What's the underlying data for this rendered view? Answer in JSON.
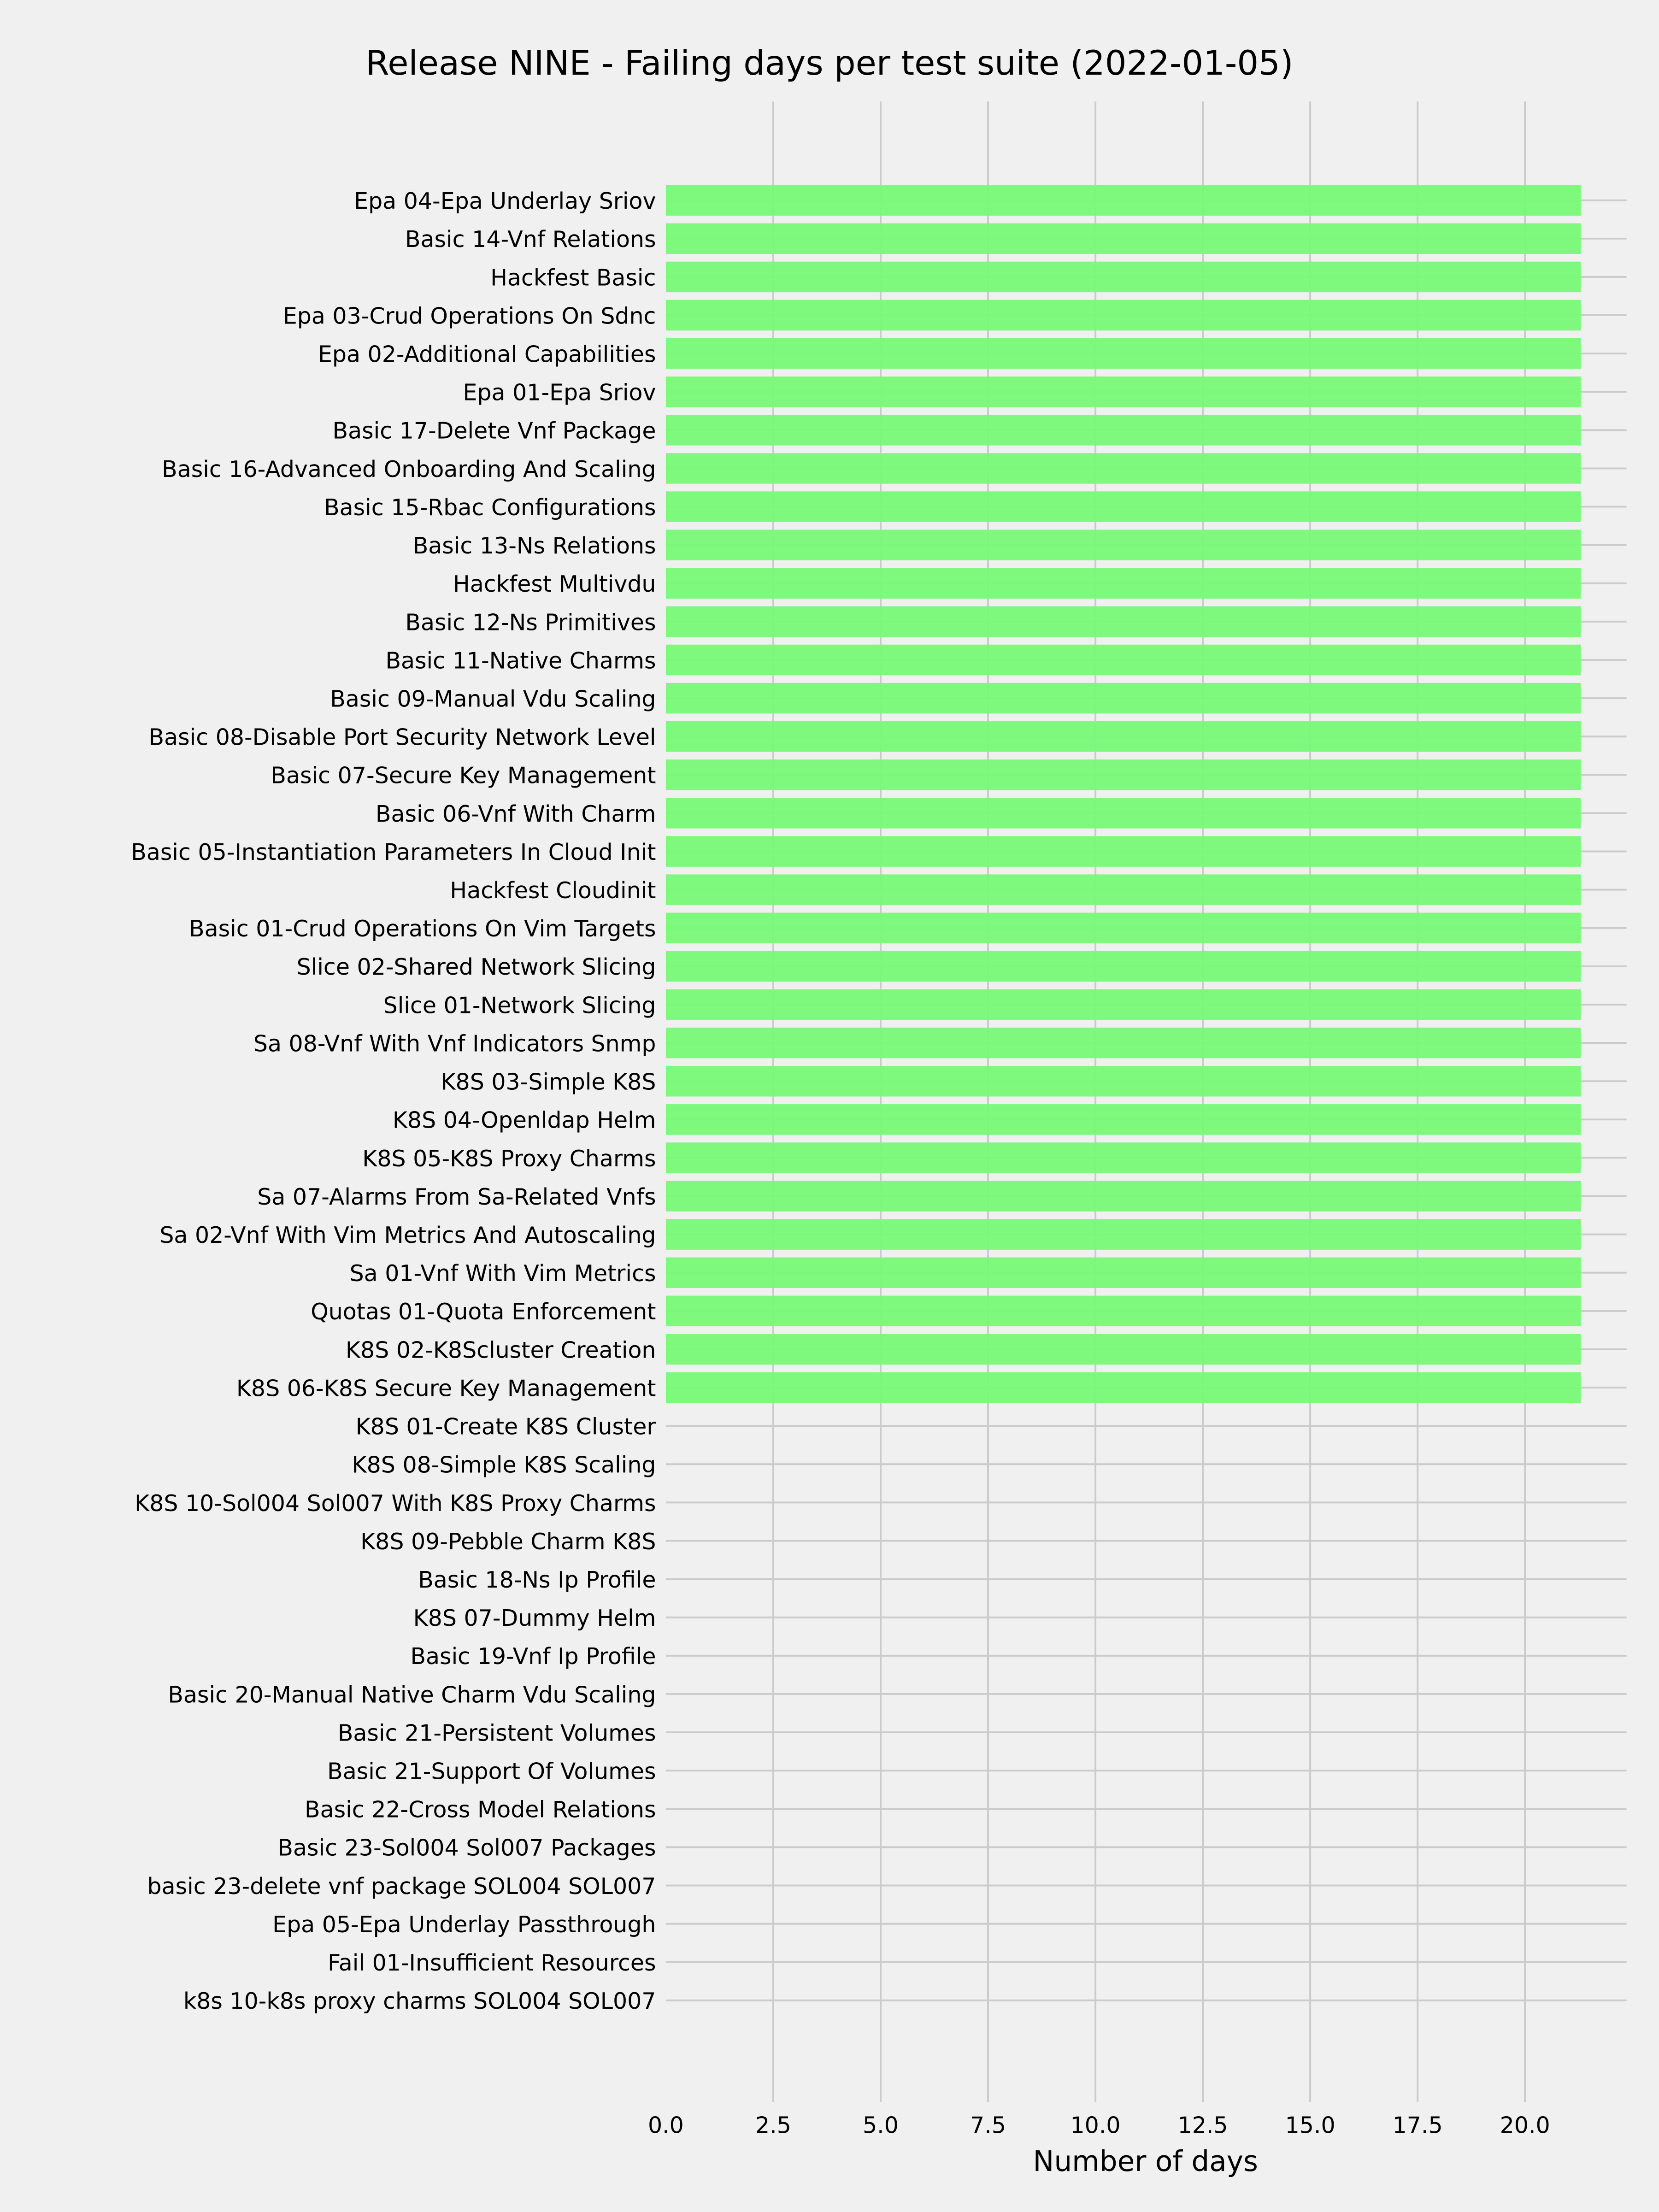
{
  "chart_data": {
    "type": "bar",
    "orientation": "horizontal",
    "title": "Release NINE - Failing days per test suite (2022-01-05)",
    "xlabel": "Number of days",
    "ylabel": "",
    "xlim": [
      0,
      22.3
    ],
    "xticks": [
      "0.0",
      "2.5",
      "5.0",
      "7.5",
      "10.0",
      "12.5",
      "15.0",
      "17.5",
      "20.0"
    ],
    "grid": true,
    "bar_color": "#77f977",
    "background_color": "#f0f0f0",
    "grid_color": "#cbcbcb",
    "categories": [
      "Epa 04-Epa Underlay Sriov",
      "Basic 14-Vnf Relations",
      "Hackfest Basic",
      "Epa 03-Crud Operations On Sdnc",
      "Epa 02-Additional Capabilities",
      "Epa 01-Epa Sriov",
      "Basic 17-Delete Vnf Package",
      "Basic 16-Advanced Onboarding And Scaling",
      "Basic 15-Rbac Configurations",
      "Basic 13-Ns Relations",
      "Hackfest Multivdu",
      "Basic 12-Ns Primitives",
      "Basic 11-Native Charms",
      "Basic 09-Manual Vdu Scaling",
      "Basic 08-Disable Port Security Network Level",
      "Basic 07-Secure Key Management",
      "Basic 06-Vnf With Charm",
      "Basic 05-Instantiation Parameters In Cloud Init",
      "Hackfest Cloudinit",
      "Basic 01-Crud Operations On Vim Targets",
      "Slice 02-Shared Network Slicing",
      "Slice 01-Network Slicing",
      "Sa 08-Vnf With Vnf Indicators Snmp",
      "K8S 03-Simple K8S",
      "K8S 04-Openldap Helm",
      "K8S 05-K8S Proxy Charms",
      "Sa 07-Alarms From Sa-Related Vnfs",
      "Sa 02-Vnf With Vim Metrics And Autoscaling",
      "Sa 01-Vnf With Vim Metrics",
      "Quotas 01-Quota Enforcement",
      "K8S 02-K8Scluster Creation",
      "K8S 06-K8S Secure Key Management",
      "K8S 01-Create K8S Cluster",
      "K8S 08-Simple K8S Scaling",
      "K8S 10-Sol004 Sol007 With K8S Proxy Charms",
      "K8S 09-Pebble Charm K8S",
      "Basic 18-Ns Ip Profile",
      "K8S 07-Dummy Helm",
      "Basic 19-Vnf Ip Profile",
      "Basic 20-Manual Native Charm Vdu Scaling",
      "Basic 21-Persistent Volumes",
      "Basic 21-Support Of Volumes",
      "Basic 22-Cross Model Relations",
      "Basic 23-Sol004 Sol007 Packages",
      "basic 23-delete vnf package SOL004 SOL007",
      "Epa 05-Epa Underlay Passthrough",
      "Fail 01-Insufficient Resources",
      "k8s 10-k8s proxy charms SOL004 SOL007"
    ],
    "values": [
      21.3,
      21.3,
      21.3,
      21.3,
      21.3,
      21.3,
      21.3,
      21.3,
      21.3,
      21.3,
      21.3,
      21.3,
      21.3,
      21.3,
      21.3,
      21.3,
      21.3,
      21.3,
      21.3,
      21.3,
      21.3,
      21.3,
      21.3,
      21.3,
      21.3,
      21.3,
      21.3,
      21.3,
      21.3,
      21.3,
      21.3,
      21.3,
      0,
      0,
      0,
      0,
      0,
      0,
      0,
      0,
      0,
      0,
      0,
      0,
      0,
      0,
      0,
      0
    ]
  }
}
